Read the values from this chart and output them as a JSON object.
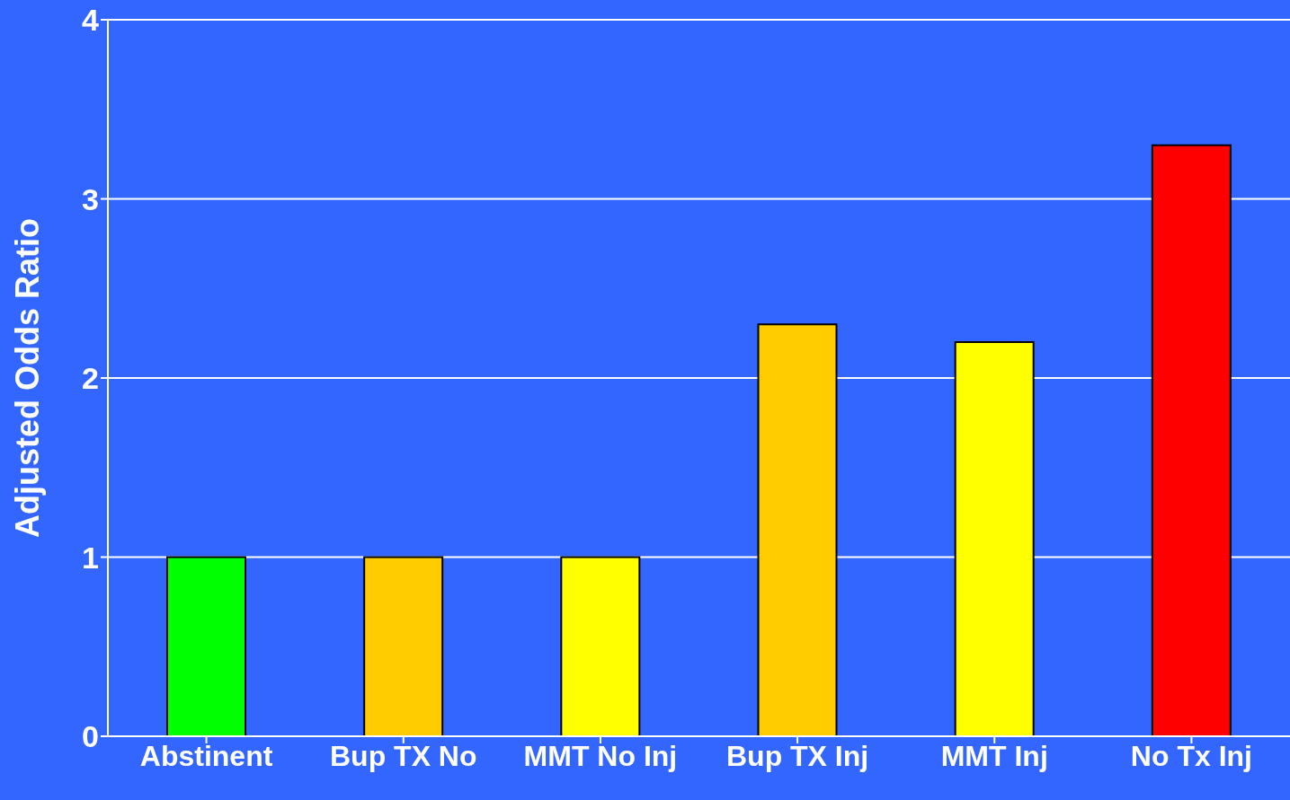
{
  "chart_data": {
    "type": "bar",
    "ylabel": "Adjusted Odds Ratio",
    "categories": [
      "Abstinent",
      "Bup TX No",
      "MMT No Inj",
      "Bup TX Inj",
      "MMT Inj",
      "No Tx Inj"
    ],
    "values": [
      1,
      1,
      1,
      2.3,
      2.2,
      3.3
    ],
    "colors": [
      "#00ff00",
      "#ffcc00",
      "#ffff00",
      "#ffcc00",
      "#ffff00",
      "#ff0000"
    ],
    "ylim": [
      0,
      4
    ],
    "yticks": [
      0,
      1,
      2,
      3,
      4
    ],
    "grid": "y"
  }
}
